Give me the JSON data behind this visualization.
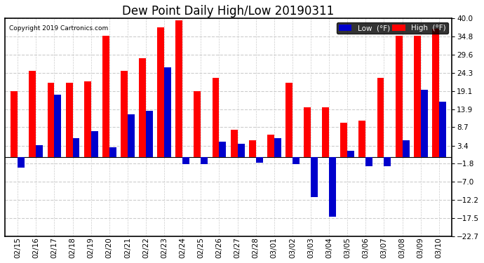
{
  "title": "Dew Point Daily High/Low 20190311",
  "copyright": "Copyright 2019 Cartronics.com",
  "dates": [
    "02/15",
    "02/16",
    "02/17",
    "02/18",
    "02/19",
    "02/20",
    "02/21",
    "02/22",
    "02/23",
    "02/24",
    "02/25",
    "02/26",
    "02/27",
    "02/28",
    "03/01",
    "03/02",
    "03/03",
    "03/04",
    "03/05",
    "03/06",
    "03/07",
    "03/08",
    "03/09",
    "03/10"
  ],
  "highs": [
    19.0,
    25.0,
    21.5,
    21.5,
    22.0,
    35.0,
    25.0,
    28.5,
    37.5,
    39.5,
    19.0,
    23.0,
    8.0,
    5.0,
    6.5,
    21.5,
    14.5,
    14.5,
    10.0,
    10.5,
    23.0,
    35.0,
    35.0,
    37.0
  ],
  "lows": [
    -3.0,
    3.5,
    18.0,
    5.5,
    7.5,
    3.0,
    12.5,
    13.5,
    26.0,
    -2.0,
    -2.0,
    4.5,
    4.0,
    -1.5,
    5.5,
    -2.0,
    -11.5,
    -17.0,
    2.0,
    -2.5,
    -2.5,
    5.0,
    19.5,
    16.0
  ],
  "high_color": "#ff0000",
  "low_color": "#0000cc",
  "bg_color": "#ffffff",
  "plot_bg": "#ffffff",
  "ylim": [
    -22.7,
    40.0
  ],
  "yticks": [
    40.0,
    34.8,
    29.6,
    24.3,
    19.1,
    13.9,
    8.7,
    3.4,
    -1.8,
    -7.0,
    -12.2,
    -17.5,
    -22.7
  ],
  "grid_color": "#cccccc",
  "title_fontsize": 12,
  "bar_width": 0.38
}
